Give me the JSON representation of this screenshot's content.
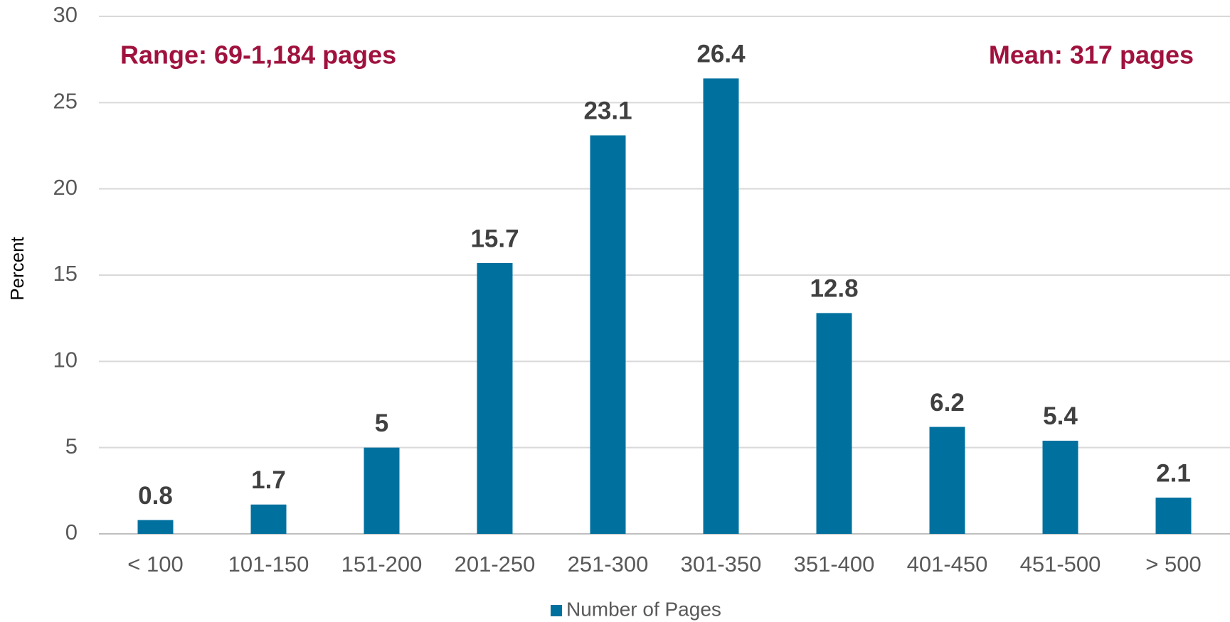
{
  "chart_data": {
    "type": "bar",
    "y_axis_label": "Percent",
    "annotations": [
      "Range: 69-1,184 pages",
      "Mean: 317 pages"
    ],
    "categories": [
      "< 100",
      "101-150",
      "151-200",
      "201-250",
      "251-300",
      "301-350",
      "351-400",
      "401-450",
      "451-500",
      "> 500"
    ],
    "series": [
      {
        "name": "Number of Pages",
        "color": "#00719f",
        "values": [
          0.8,
          1.7,
          5,
          15.7,
          23.1,
          26.4,
          12.8,
          6.2,
          5.4,
          2.1
        ]
      }
    ],
    "ylim": [
      0,
      30
    ],
    "yticks": [
      0,
      5,
      10,
      15,
      20,
      25,
      30
    ],
    "grid": true,
    "legend": "bottom",
    "annotation_color": "#a0123e"
  }
}
